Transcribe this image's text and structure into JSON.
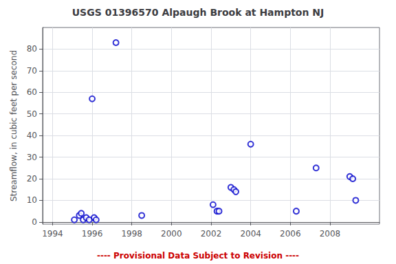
{
  "chart_data": {
    "type": "scatter",
    "title": "USGS 01396570 Alpaugh Brook at Hampton NJ",
    "ylabel": "Streamflow, in cubic feet per second",
    "x": [
      1995.1,
      1995.35,
      1995.45,
      1995.55,
      1995.7,
      1995.85,
      1996.0,
      1996.1,
      1996.2,
      1997.2,
      1998.5,
      2002.1,
      2002.3,
      2002.4,
      2003.0,
      2003.15,
      2003.25,
      2004.0,
      2006.3,
      2007.3,
      2009.0,
      2009.15,
      2009.3
    ],
    "values": [
      1,
      3,
      4,
      1,
      2,
      1,
      57,
      2,
      1,
      83,
      3,
      8,
      5,
      5,
      16,
      15,
      14,
      36,
      5,
      25,
      21,
      20,
      10
    ],
    "color": "#0000cc",
    "marker": "open_circle",
    "xlim": [
      1993.5,
      2010.5
    ],
    "xticks": [
      1994,
      1996,
      1998,
      2000,
      2002,
      2004,
      2006,
      2008
    ],
    "ylim": [
      -1,
      90
    ],
    "yticks": [
      0,
      10,
      20,
      30,
      40,
      50,
      60,
      70,
      80
    ],
    "grid": true,
    "annotations": [
      {
        "text": "---- Provisional Data Subject to Revision ----",
        "color": "#cc0000"
      }
    ]
  }
}
